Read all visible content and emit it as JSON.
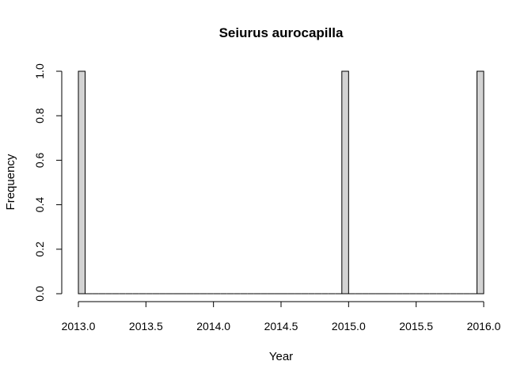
{
  "chart_data": {
    "type": "bar",
    "title": "Seiurus aurocapilla",
    "xlabel": "Year",
    "ylabel": "Frequency",
    "xlim": [
      2013.0,
      2016.0
    ],
    "ylim": [
      0,
      1.0
    ],
    "bin_width": 0.05,
    "x_ticks": [
      2013.0,
      2013.5,
      2014.0,
      2014.5,
      2015.0,
      2015.5,
      2016.0
    ],
    "x_tick_labels": [
      "2013.0",
      "2013.5",
      "2014.0",
      "2014.5",
      "2015.0",
      "2015.5",
      "2016.0"
    ],
    "y_ticks": [
      0.0,
      0.2,
      0.4,
      0.6,
      0.8,
      1.0
    ],
    "y_tick_labels": [
      "0.0",
      "0.2",
      "0.4",
      "0.6",
      "0.8",
      "1.0"
    ],
    "bins": [
      {
        "x0": 2013.0,
        "x1": 2013.05,
        "count": 1
      },
      {
        "x0": 2014.95,
        "x1": 2015.0,
        "count": 1
      },
      {
        "x0": 2015.95,
        "x1": 2016.0,
        "count": 1
      }
    ],
    "bar_color": "#d3d3d3",
    "bar_edge_color": "#000000"
  }
}
